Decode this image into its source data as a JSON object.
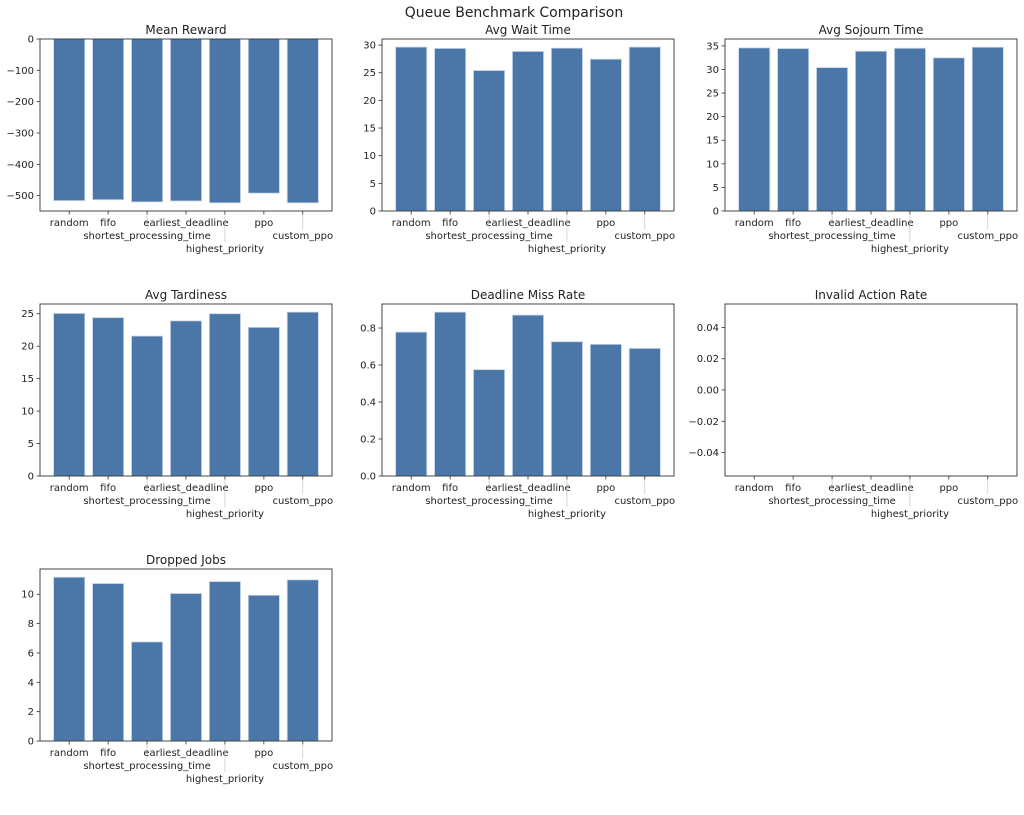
{
  "figure": {
    "suptitle": "Queue Benchmark Comparison",
    "bar_color": "#4a76a8",
    "bar_edge": "#c9d7e6"
  },
  "chart_data": [
    {
      "type": "bar",
      "title": "Mean Reward",
      "categories": [
        "random",
        "fifo",
        "shortest_processing_time",
        "earliest_deadline",
        "highest_priority",
        "ppo",
        "custom_ppo"
      ],
      "values": [
        -516,
        -513,
        -520,
        -517,
        -523,
        -492,
        -523
      ],
      "ylim": [
        -549,
        0
      ],
      "yticks": [
        0,
        -100,
        -200,
        -300,
        -400,
        -500
      ],
      "ytick_labels": [
        "0",
        "−100",
        "−200",
        "−300",
        "−400",
        "−500"
      ]
    },
    {
      "type": "bar",
      "title": "Avg Wait Time",
      "categories": [
        "random",
        "fifo",
        "shortest_processing_time",
        "earliest_deadline",
        "highest_priority",
        "ppo",
        "custom_ppo"
      ],
      "values": [
        29.64,
        29.4,
        25.4,
        28.85,
        29.45,
        27.45,
        29.64
      ],
      "ylim": [
        0,
        31.1
      ],
      "yticks": [
        0,
        5,
        10,
        15,
        20,
        25,
        30
      ],
      "ytick_labels": [
        "0",
        "5",
        "10",
        "15",
        "20",
        "25",
        "30"
      ]
    },
    {
      "type": "bar",
      "title": "Avg Sojourn Time",
      "categories": [
        "random",
        "fifo",
        "shortest_processing_time",
        "earliest_deadline",
        "highest_priority",
        "ppo",
        "custom_ppo"
      ],
      "values": [
        34.58,
        34.44,
        30.4,
        33.87,
        34.5,
        32.46,
        34.72
      ],
      "ylim": [
        0,
        36.46
      ],
      "yticks": [
        0,
        5,
        10,
        15,
        20,
        25,
        30,
        35
      ],
      "ytick_labels": [
        "0",
        "5",
        "10",
        "15",
        "20",
        "25",
        "30",
        "35"
      ]
    },
    {
      "type": "bar",
      "title": "Avg Tardiness",
      "categories": [
        "random",
        "fifo",
        "shortest_processing_time",
        "earliest_deadline",
        "highest_priority",
        "ppo",
        "custom_ppo"
      ],
      "values": [
        25.05,
        24.4,
        21.56,
        23.9,
        25.0,
        22.9,
        25.25
      ],
      "ylim": [
        0,
        26.5
      ],
      "yticks": [
        0,
        5,
        10,
        15,
        20,
        25
      ],
      "ytick_labels": [
        "0",
        "5",
        "10",
        "15",
        "20",
        "25"
      ]
    },
    {
      "type": "bar",
      "title": "Deadline Miss Rate",
      "categories": [
        "random",
        "fifo",
        "shortest_processing_time",
        "earliest_deadline",
        "highest_priority",
        "ppo",
        "custom_ppo"
      ],
      "values": [
        0.778,
        0.886,
        0.575,
        0.87,
        0.726,
        0.712,
        0.69
      ],
      "ylim": [
        0,
        0.93
      ],
      "yticks": [
        0,
        0.2,
        0.4,
        0.6,
        0.8
      ],
      "ytick_labels": [
        "0.0",
        "0.2",
        "0.4",
        "0.6",
        "0.8"
      ]
    },
    {
      "type": "bar",
      "title": "Invalid Action Rate",
      "categories": [
        "random",
        "fifo",
        "shortest_processing_time",
        "earliest_deadline",
        "highest_priority",
        "ppo",
        "custom_ppo"
      ],
      "values": [
        0,
        0,
        0,
        0,
        0,
        0,
        0
      ],
      "ylim": [
        -0.055,
        0.055
      ],
      "yticks": [
        0.04,
        0.02,
        0,
        -0.02,
        -0.04
      ],
      "ytick_labels": [
        "0.04",
        "0.02",
        "0.00",
        "−0.02",
        "−0.04"
      ]
    },
    {
      "type": "bar",
      "title": "Dropped Jobs",
      "categories": [
        "random",
        "fifo",
        "shortest_processing_time",
        "earliest_deadline",
        "highest_priority",
        "ppo",
        "custom_ppo"
      ],
      "values": [
        11.16,
        10.73,
        6.75,
        10.05,
        10.86,
        9.93,
        10.98
      ],
      "ylim": [
        0,
        11.72
      ],
      "yticks": [
        0,
        2,
        4,
        6,
        8,
        10
      ],
      "ytick_labels": [
        "0",
        "2",
        "4",
        "6",
        "8",
        "10"
      ]
    }
  ]
}
